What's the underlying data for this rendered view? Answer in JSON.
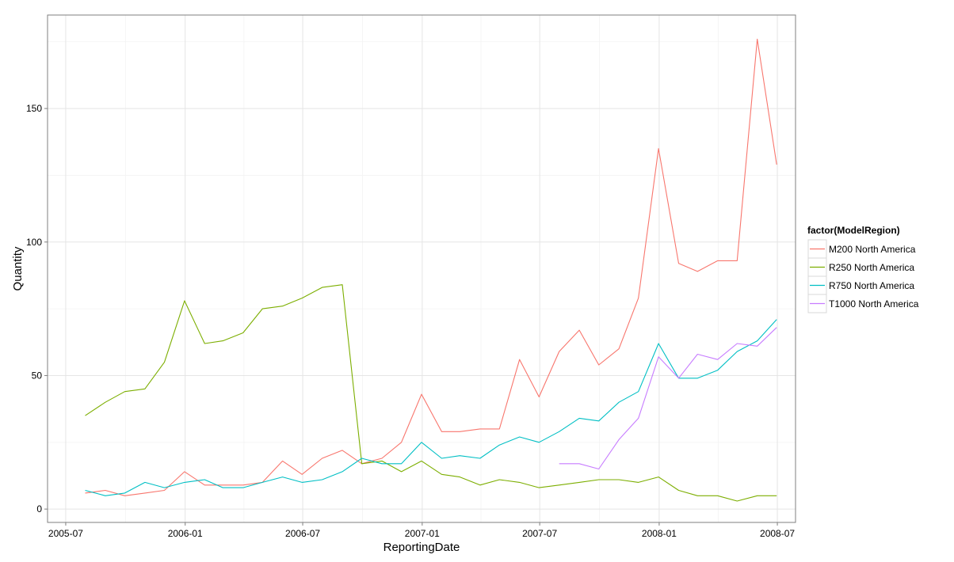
{
  "chart_data": {
    "type": "line",
    "xlabel": "ReportingDate",
    "ylabel": "Quantity",
    "x_tick_labels": [
      "2005-07",
      "2006-01",
      "2006-07",
      "2007-01",
      "2007-07",
      "2008-01",
      "2008-07"
    ],
    "y_tick_labels": [
      "0",
      "50",
      "100",
      "150"
    ],
    "y_ticks": [
      0,
      50,
      100,
      150
    ],
    "x_ticks": [
      "2005-07-01",
      "2006-01-01",
      "2006-07-01",
      "2007-01-01",
      "2007-07-01",
      "2008-01-01",
      "2008-07-01"
    ],
    "xlim": [
      "2005-06-03",
      "2008-07-29"
    ],
    "ylim": [
      -5,
      185
    ],
    "grid": true,
    "legend_title": "factor(ModelRegion)",
    "legend_position": "right",
    "series": [
      {
        "name": "M200 North America",
        "color": "#F8766D",
        "x": [
          "2005-07-31",
          "2005-08-31",
          "2005-09-30",
          "2005-10-31",
          "2005-11-30",
          "2005-12-31",
          "2006-01-31",
          "2006-02-28",
          "2006-03-31",
          "2006-04-30",
          "2006-05-31",
          "2006-06-30",
          "2006-07-31",
          "2006-08-31",
          "2006-09-30",
          "2006-10-31",
          "2006-11-30",
          "2006-12-31",
          "2007-01-31",
          "2007-02-28",
          "2007-03-31",
          "2007-04-30",
          "2007-05-31",
          "2007-06-30",
          "2007-07-31",
          "2007-08-31",
          "2007-09-30",
          "2007-10-31",
          "2007-11-30",
          "2007-12-31",
          "2008-01-31",
          "2008-02-29",
          "2008-03-31",
          "2008-04-30",
          "2008-05-31",
          "2008-06-30"
        ],
        "values": [
          6,
          7,
          5,
          6,
          7,
          14,
          9,
          9,
          9,
          10,
          18,
          13,
          19,
          22,
          17,
          19,
          25,
          43,
          29,
          29,
          30,
          30,
          56,
          42,
          59,
          67,
          54,
          60,
          79,
          135,
          92,
          89,
          93,
          93,
          176,
          129
        ]
      },
      {
        "name": "R250 North America",
        "color": "#7CAE00",
        "x": [
          "2005-07-31",
          "2005-08-31",
          "2005-09-30",
          "2005-10-31",
          "2005-11-30",
          "2005-12-31",
          "2006-01-31",
          "2006-02-28",
          "2006-03-31",
          "2006-04-30",
          "2006-05-31",
          "2006-06-30",
          "2006-07-31",
          "2006-08-31",
          "2006-09-30",
          "2006-10-31",
          "2006-11-30",
          "2006-12-31",
          "2007-01-31",
          "2007-02-28",
          "2007-03-31",
          "2007-04-30",
          "2007-05-31",
          "2007-06-30",
          "2007-07-31",
          "2007-08-31",
          "2007-09-30",
          "2007-10-31",
          "2007-11-30",
          "2007-12-31",
          "2008-01-31",
          "2008-02-29",
          "2008-03-31",
          "2008-04-30",
          "2008-05-31",
          "2008-06-30"
        ],
        "values": [
          35,
          40,
          44,
          45,
          55,
          78,
          62,
          63,
          66,
          75,
          76,
          79,
          83,
          84,
          17,
          18,
          14,
          18,
          13,
          12,
          9,
          11,
          10,
          8,
          9,
          10,
          11,
          11,
          10,
          12,
          7,
          5,
          5,
          3,
          5,
          5
        ]
      },
      {
        "name": "R750 North America",
        "color": "#00BFC4",
        "x": [
          "2005-07-31",
          "2005-08-31",
          "2005-09-30",
          "2005-10-31",
          "2005-11-30",
          "2005-12-31",
          "2006-01-31",
          "2006-02-28",
          "2006-03-31",
          "2006-04-30",
          "2006-05-31",
          "2006-06-30",
          "2006-07-31",
          "2006-08-31",
          "2006-09-30",
          "2006-10-31",
          "2006-11-30",
          "2006-12-31",
          "2007-01-31",
          "2007-02-28",
          "2007-03-31",
          "2007-04-30",
          "2007-05-31",
          "2007-06-30",
          "2007-07-31",
          "2007-08-31",
          "2007-09-30",
          "2007-10-31",
          "2007-11-30",
          "2007-12-31",
          "2008-01-31",
          "2008-02-29",
          "2008-03-31",
          "2008-04-30",
          "2008-05-31",
          "2008-06-30"
        ],
        "values": [
          7,
          5,
          6,
          10,
          8,
          10,
          11,
          8,
          8,
          10,
          12,
          10,
          11,
          14,
          19,
          17,
          17,
          25,
          19,
          20,
          19,
          24,
          27,
          25,
          29,
          34,
          33,
          40,
          44,
          62,
          49,
          49,
          52,
          59,
          63,
          71
        ]
      },
      {
        "name": "T1000 North America",
        "color": "#C77CFF",
        "x": [
          "2007-07-31",
          "2007-08-31",
          "2007-09-30",
          "2007-10-31",
          "2007-11-30",
          "2007-12-31",
          "2008-01-31",
          "2008-02-29",
          "2008-03-31",
          "2008-04-30",
          "2008-05-31",
          "2008-06-30"
        ],
        "values": [
          17,
          17,
          15,
          26,
          34,
          57,
          49,
          58,
          56,
          62,
          61,
          68
        ]
      }
    ]
  }
}
